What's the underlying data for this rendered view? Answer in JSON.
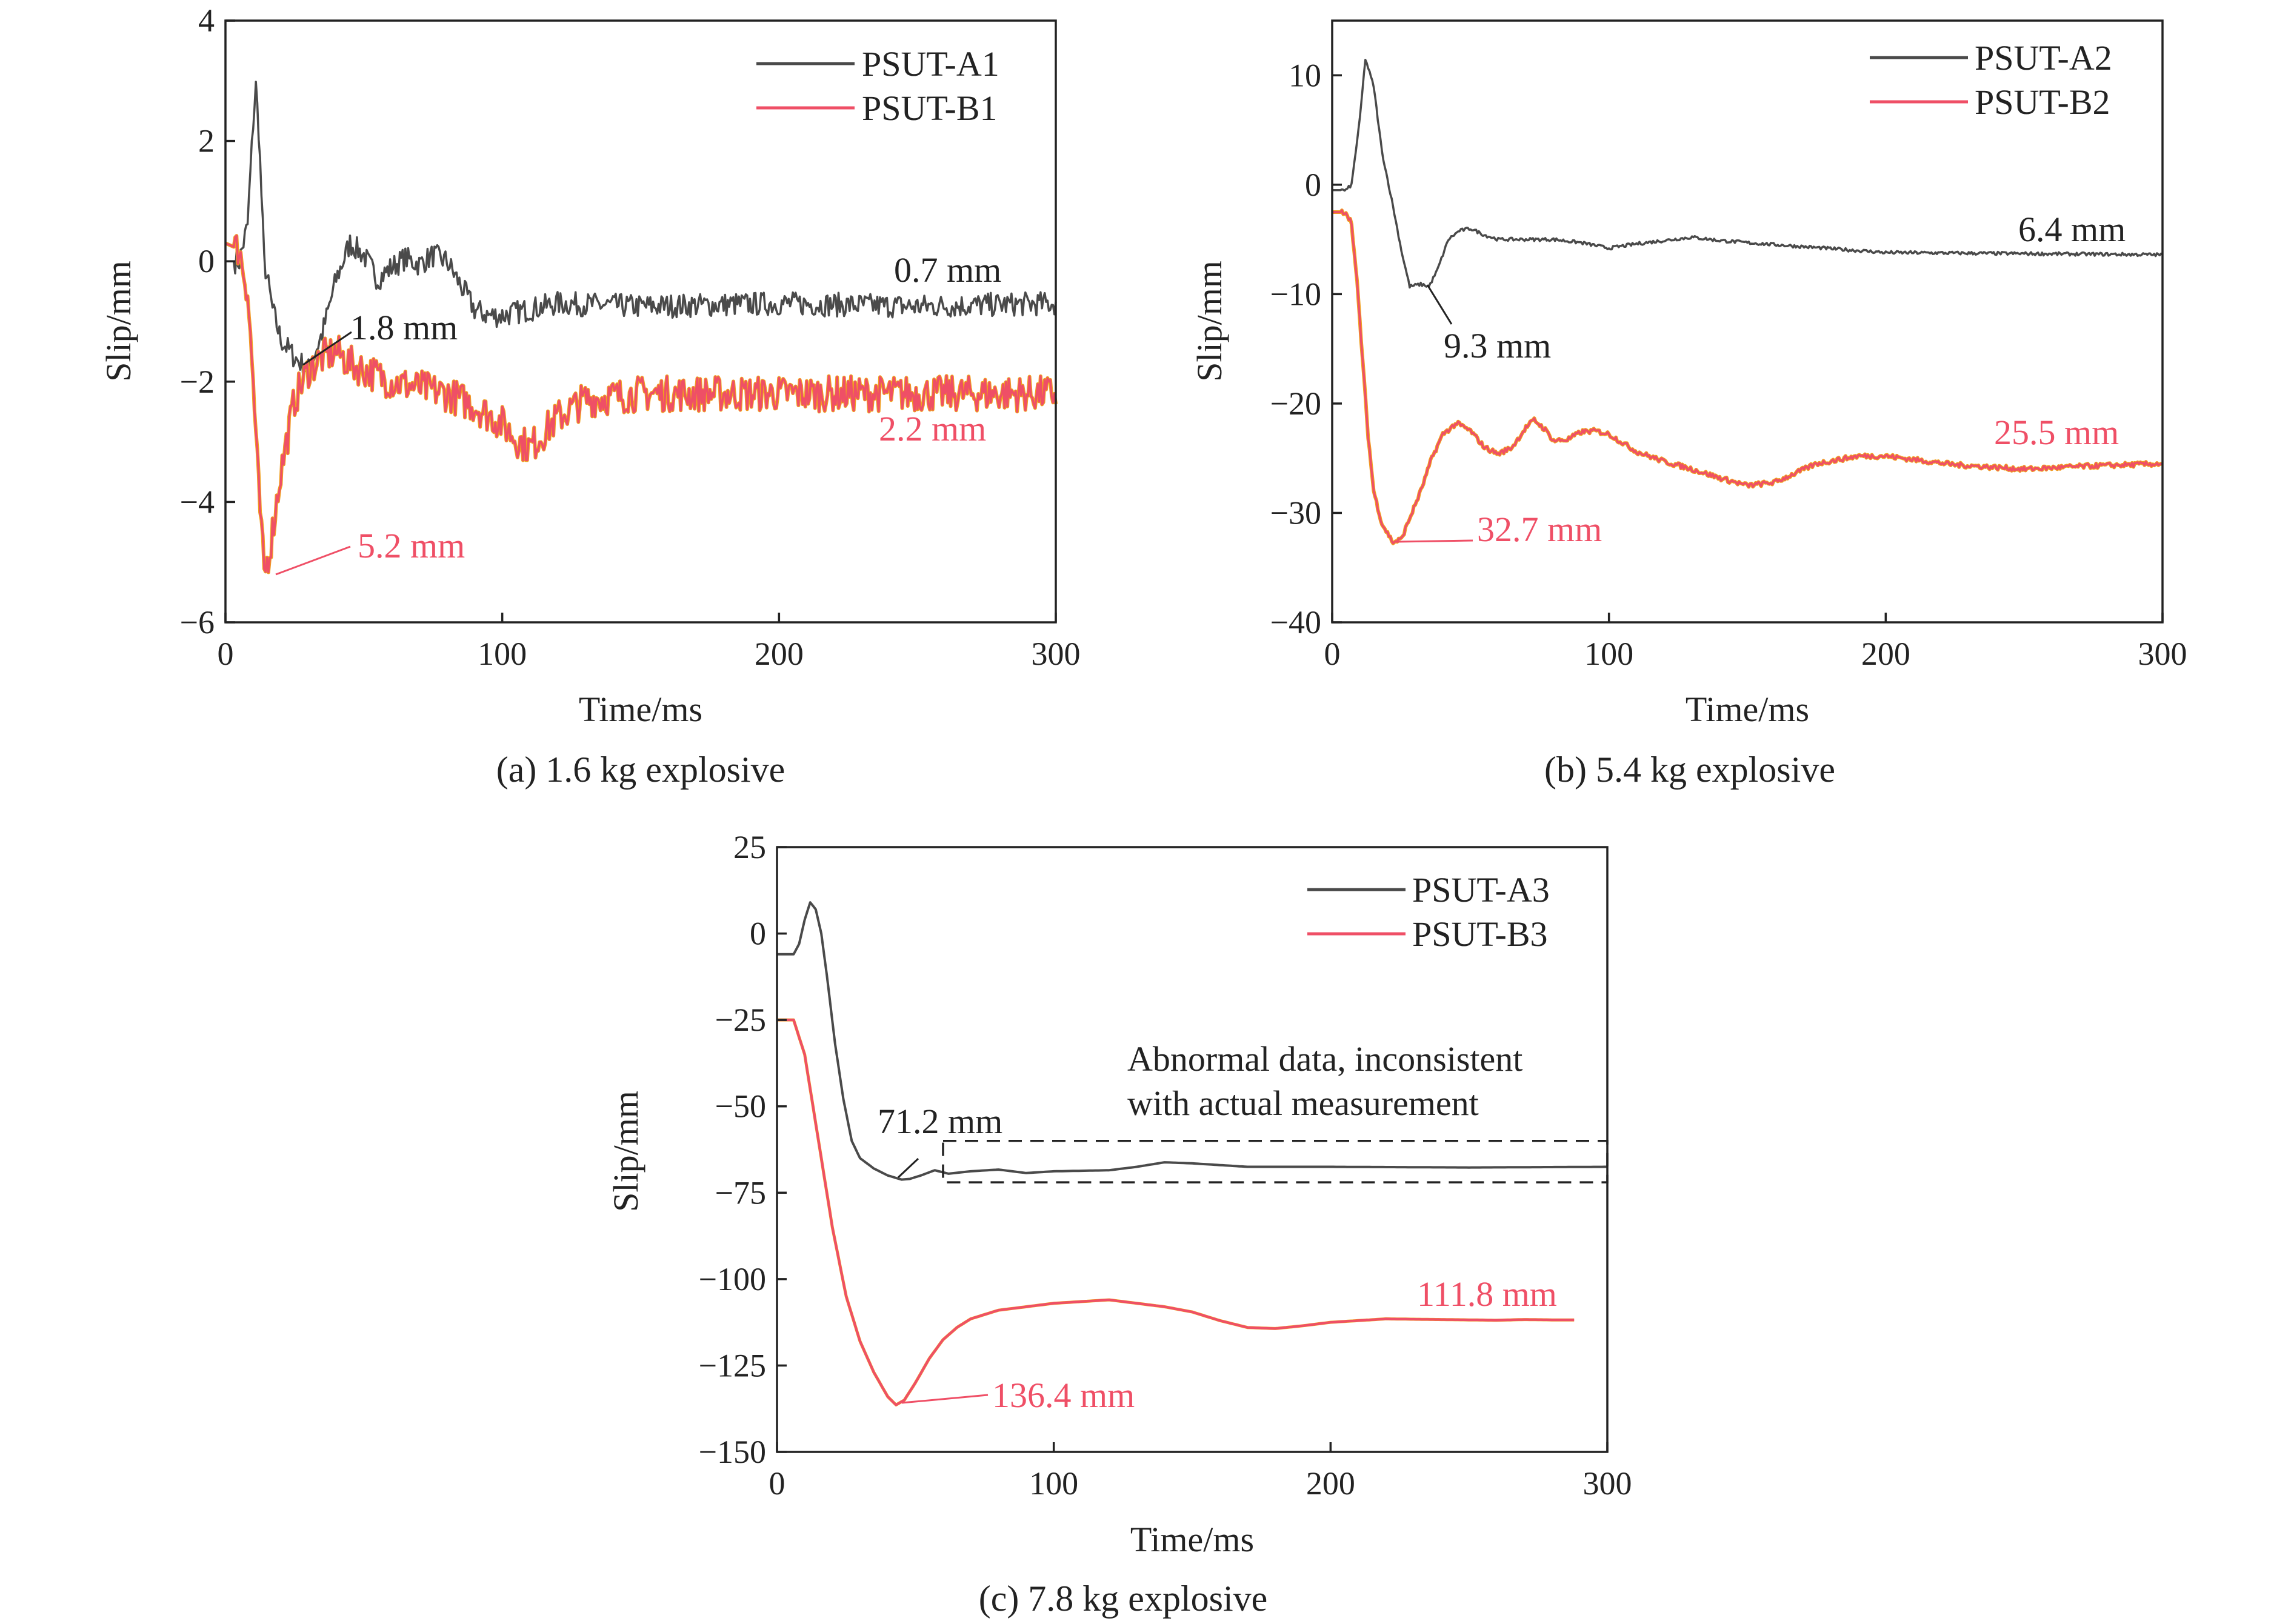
{
  "colors": {
    "series_a": "#4a4a4a",
    "series_b": "#ef4f66",
    "series_b_under": "#f0a020",
    "axis": "#222222",
    "box": "#222222"
  },
  "chart_data": [
    {
      "type": "line",
      "caption": "(a) 1.6 kg explosive",
      "xlabel": "Time/ms",
      "ylabel": "Slip/mm",
      "xlim": [
        0,
        300
      ],
      "ylim": [
        -6,
        4
      ],
      "xticks": [
        0,
        100,
        200,
        300
      ],
      "yticks": [
        -6,
        -4,
        -2,
        0,
        2,
        4
      ],
      "ytick_labels": [
        "−6",
        "−4",
        "−2",
        "0",
        "2",
        "4"
      ],
      "legend_position": "top-right",
      "noise": 0.2,
      "series": [
        {
          "name": "PSUT-A1",
          "color": "#4a4a4a",
          "x": [
            0,
            5,
            8,
            10,
            11,
            12,
            14,
            17,
            20,
            25,
            30,
            35,
            40,
            45,
            50,
            55,
            60,
            65,
            70,
            75,
            80,
            85,
            90,
            95,
            100,
            120,
            150,
            200,
            250,
            300
          ],
          "y": [
            0,
            0,
            0.6,
            2.3,
            2.9,
            2.2,
            0,
            -0.8,
            -1.3,
            -1.6,
            -1.8,
            -1.2,
            -0.3,
            0.3,
            0.1,
            -0.3,
            -0.1,
            0.05,
            -0.05,
            0.1,
            0.0,
            -0.4,
            -0.8,
            -0.9,
            -0.9,
            -0.7,
            -0.75,
            -0.7,
            -0.75,
            -0.7
          ]
        },
        {
          "name": "PSUT-B1",
          "color": "#ef4f66",
          "x": [
            0,
            5,
            8,
            10,
            12,
            14,
            16,
            20,
            25,
            30,
            35,
            40,
            45,
            50,
            55,
            60,
            70,
            80,
            90,
            100,
            105,
            110,
            115,
            120,
            130,
            150,
            200,
            250,
            300
          ],
          "y": [
            0.3,
            0.2,
            -0.5,
            -2.0,
            -3.8,
            -5.2,
            -4.8,
            -3.5,
            -2.3,
            -1.8,
            -1.6,
            -1.5,
            -1.7,
            -1.8,
            -1.9,
            -2.0,
            -2.1,
            -2.2,
            -2.4,
            -2.7,
            -2.95,
            -3.1,
            -2.85,
            -2.6,
            -2.3,
            -2.2,
            -2.2,
            -2.2,
            -2.2
          ]
        }
      ],
      "annotations": [
        {
          "text": "0.7 mm",
          "series": 0
        },
        {
          "text": "1.8 mm",
          "series": 0
        },
        {
          "text": "2.2 mm",
          "series": 1
        },
        {
          "text": "5.2 mm",
          "series": 1
        }
      ]
    },
    {
      "type": "line",
      "caption": "(b) 5.4 kg explosive",
      "xlabel": "Time/ms",
      "ylabel": "Slip/mm",
      "xlim": [
        0,
        300
      ],
      "ylim": [
        -40,
        15
      ],
      "xticks": [
        0,
        100,
        200,
        300
      ],
      "yticks": [
        -40,
        -30,
        -20,
        -10,
        0,
        10
      ],
      "ytick_labels": [
        "−40",
        "−30",
        "−20",
        "−10",
        "0",
        "10"
      ],
      "legend_position": "top-right",
      "noise": 0.15,
      "series": [
        {
          "name": "PSUT-A2",
          "color": "#4a4a4a",
          "x": [
            0,
            5,
            7,
            10,
            12,
            15,
            18,
            22,
            25,
            28,
            32,
            35,
            38,
            42,
            46,
            50,
            55,
            60,
            70,
            80,
            90,
            100,
            110,
            120,
            130,
            140,
            150,
            200,
            250,
            300
          ],
          "y": [
            -0.5,
            -0.5,
            0,
            6,
            11.5,
            9,
            3,
            -2,
            -6,
            -9.3,
            -9.1,
            -9.3,
            -7.8,
            -5,
            -4.2,
            -4,
            -4.6,
            -5,
            -5,
            -5,
            -5.3,
            -5.8,
            -5.4,
            -5.1,
            -4.8,
            -5.1,
            -5.3,
            -6.2,
            -6.3,
            -6.4
          ]
        },
        {
          "name": "PSUT-B2",
          "color": "#ef4f66",
          "x": [
            0,
            5,
            7,
            9,
            11,
            13,
            15,
            18,
            22,
            25,
            28,
            32,
            36,
            40,
            45,
            50,
            55,
            60,
            65,
            70,
            73,
            77,
            80,
            85,
            90,
            95,
            100,
            110,
            120,
            130,
            140,
            150,
            160,
            175,
            190,
            200,
            225,
            250,
            275,
            300
          ],
          "y": [
            -2.5,
            -2.5,
            -3.5,
            -9,
            -16,
            -23,
            -28,
            -31,
            -32.7,
            -32.4,
            -30.5,
            -28,
            -25,
            -22.8,
            -21.8,
            -22.5,
            -24,
            -24.6,
            -24,
            -22.2,
            -21.5,
            -22.4,
            -23.4,
            -23.3,
            -22.6,
            -22.5,
            -22.8,
            -24.4,
            -25.3,
            -26,
            -26.8,
            -27.5,
            -27.2,
            -25.5,
            -24.8,
            -24.8,
            -25.6,
            -26,
            -25.7,
            -25.5
          ]
        }
      ],
      "annotations": [
        {
          "text": "6.4 mm",
          "series": 0
        },
        {
          "text": "9.3 mm",
          "series": 0
        },
        {
          "text": "25.5 mm",
          "series": 1
        },
        {
          "text": "32.7 mm",
          "series": 1
        }
      ]
    },
    {
      "type": "line",
      "caption": "(c) 7.8 kg explosive",
      "xlabel": "Time/ms",
      "ylabel": "Slip/mm",
      "xlim": [
        0,
        300
      ],
      "ylim": [
        -150,
        25
      ],
      "xticks": [
        0,
        100,
        200,
        300
      ],
      "yticks": [
        -150,
        -125,
        -100,
        -75,
        -50,
        -25,
        0,
        25
      ],
      "ytick_labels": [
        "−150",
        "−125",
        "−100",
        "−75",
        "−50",
        "−25",
        "0",
        "25"
      ],
      "legend_position": "top-right",
      "noise": 0,
      "series": [
        {
          "name": "PSUT-A3",
          "color": "#4a4a4a",
          "x": [
            0,
            4,
            6,
            8,
            10,
            12,
            14,
            16,
            18,
            21,
            24,
            27,
            30,
            35,
            40,
            45,
            48,
            52,
            57,
            62,
            70,
            80,
            90,
            100,
            120,
            130,
            140,
            150,
            170,
            200,
            250,
            300
          ],
          "y": [
            -6,
            -6,
            -6,
            -3,
            4,
            9,
            7,
            0,
            -12,
            -32,
            -48,
            -60,
            -65,
            -68,
            -70,
            -71.2,
            -71,
            -70,
            -68.5,
            -69.5,
            -68.8,
            -68.3,
            -69.3,
            -68.8,
            -68.5,
            -67.5,
            -66.2,
            -66.5,
            -67.5,
            -67.5,
            -67.7,
            -67.5
          ]
        },
        {
          "name": "PSUT-B3",
          "color": "#ef4f66",
          "x": [
            0,
            4,
            6,
            10,
            15,
            20,
            25,
            30,
            35,
            40,
            43,
            46,
            50,
            55,
            60,
            65,
            70,
            80,
            90,
            100,
            110,
            120,
            130,
            140,
            150,
            160,
            170,
            180,
            190,
            200,
            220,
            240,
            260,
            270,
            280,
            288
          ],
          "y": [
            -25,
            -25,
            -25,
            -35,
            -60,
            -85,
            -105,
            -118,
            -127,
            -134,
            -136.4,
            -135,
            -130,
            -123,
            -117.5,
            -114,
            -111.5,
            -109,
            -108,
            -107,
            -106.5,
            -106,
            -107,
            -108,
            -109.5,
            -112,
            -114,
            -114.3,
            -113.5,
            -112.5,
            -111.5,
            -111.7,
            -111.9,
            -111.7,
            -111.8,
            -111.8
          ]
        }
      ],
      "annotations": [
        {
          "text": "Abnormal data, inconsistent"
        },
        {
          "text": "with actual measurement"
        },
        {
          "text": "71.2 mm",
          "series": 0
        },
        {
          "text": "111.8 mm",
          "series": 1
        },
        {
          "text": "136.4 mm",
          "series": 1
        }
      ],
      "abnormal_box": {
        "x": [
          60,
          300
        ],
        "y": [
          -72,
          -60
        ]
      }
    }
  ]
}
